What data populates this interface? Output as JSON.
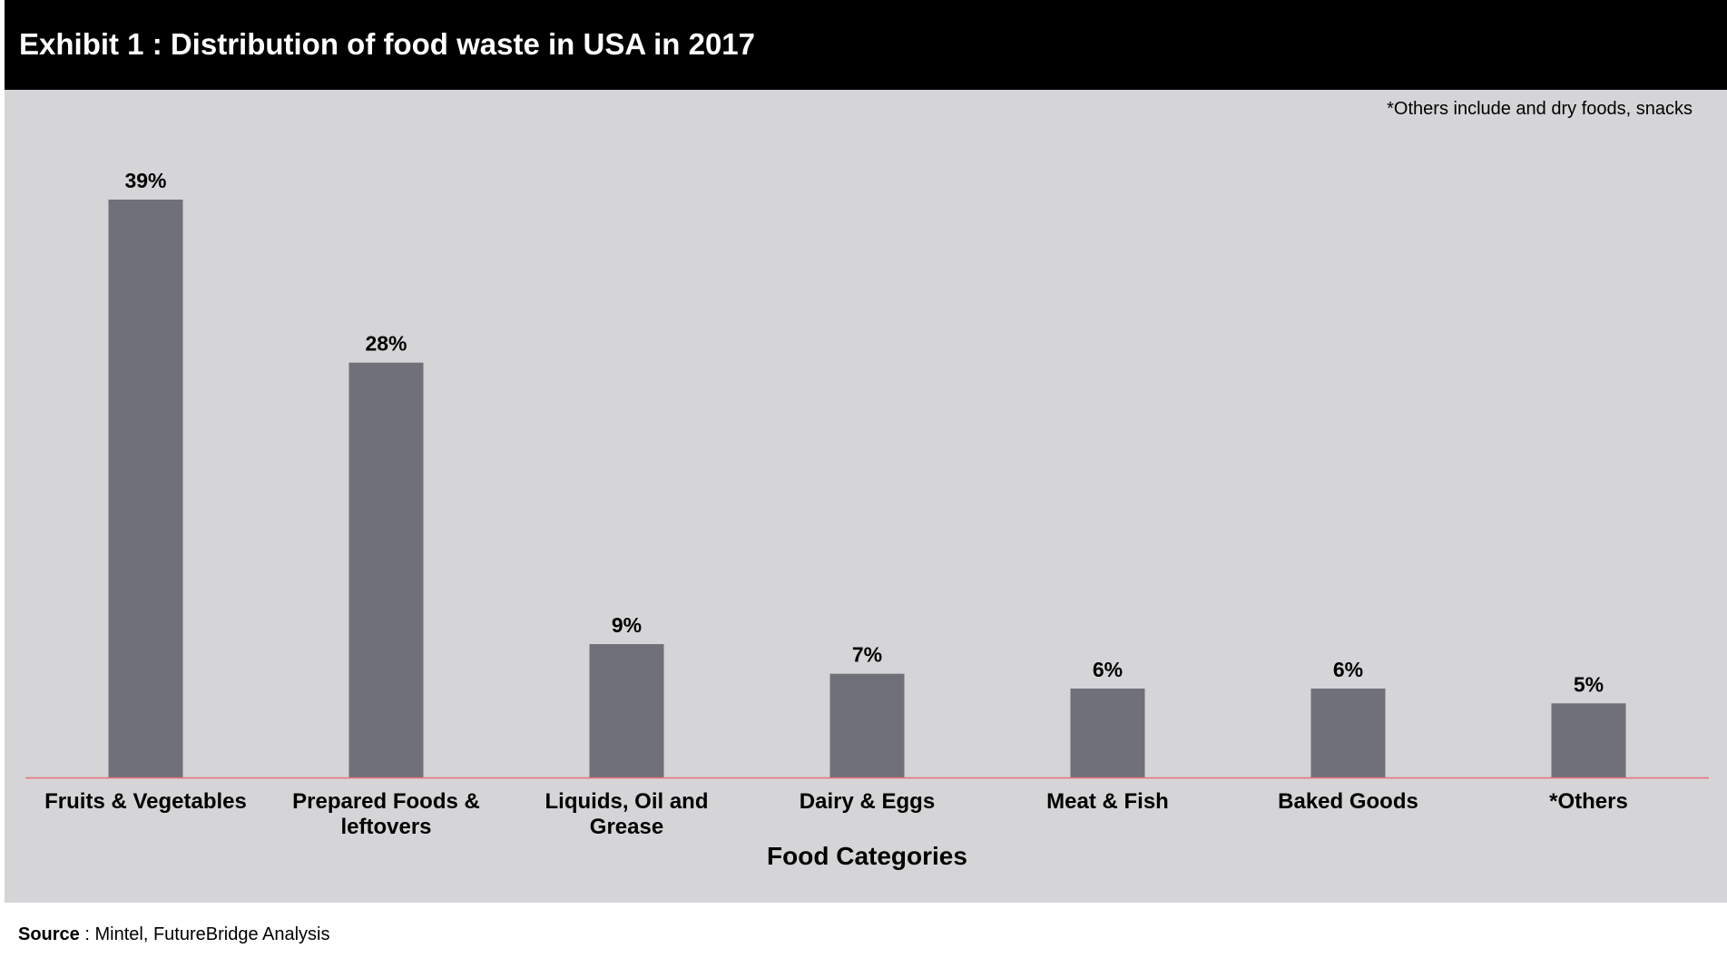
{
  "header": {
    "title": "Exhibit 1 : Distribution of food waste in USA in 2017"
  },
  "note": "*Others include and dry foods, snacks",
  "source": {
    "label": "Source",
    "separator": " : ",
    "text": "Mintel, FutureBridge Analysis"
  },
  "colors": {
    "bar": "#707078",
    "background": "#d5d5d7",
    "baseline": "#e8707a",
    "title_bar": "#000000"
  },
  "chart_data": {
    "type": "bar",
    "title": "Exhibit 1 : Distribution of food waste in USA in 2017",
    "xlabel": "Food Categories",
    "ylabel": "",
    "categories": [
      "Fruits & Vegetables",
      "Prepared Foods & leftovers",
      "Liquids, Oil and Grease",
      "Dairy & Eggs",
      "Meat & Fish",
      "Baked Goods",
      "*Others"
    ],
    "category_lines": [
      [
        "Fruits & Vegetables"
      ],
      [
        "Prepared Foods &",
        "leftovers"
      ],
      [
        "Liquids, Oil and",
        "Grease"
      ],
      [
        "Dairy & Eggs"
      ],
      [
        "Meat & Fish"
      ],
      [
        "Baked Goods"
      ],
      [
        "*Others"
      ]
    ],
    "values": [
      39,
      28,
      9,
      7,
      6,
      6,
      5
    ],
    "value_labels": [
      "39%",
      "28%",
      "9%",
      "7%",
      "6%",
      "6%",
      "5%"
    ],
    "unit": "%",
    "ylim": [
      0,
      39
    ],
    "grid": false,
    "legend": "none"
  }
}
